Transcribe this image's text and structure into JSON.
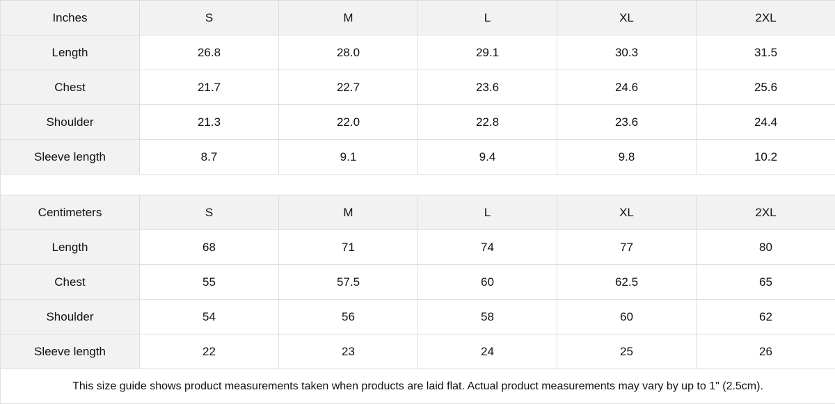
{
  "tables": [
    {
      "unit_label": "Inches",
      "sizes": [
        "S",
        "M",
        "L",
        "XL",
        "2XL"
      ],
      "rows": [
        {
          "label": "Length",
          "values": [
            "26.8",
            "28.0",
            "29.1",
            "30.3",
            "31.5"
          ]
        },
        {
          "label": "Chest",
          "values": [
            "21.7",
            "22.7",
            "23.6",
            "24.6",
            "25.6"
          ]
        },
        {
          "label": "Shoulder",
          "values": [
            "21.3",
            "22.0",
            "22.8",
            "23.6",
            "24.4"
          ]
        },
        {
          "label": "Sleeve length",
          "values": [
            "8.7",
            "9.1",
            "9.4",
            "9.8",
            "10.2"
          ]
        }
      ]
    },
    {
      "unit_label": "Centimeters",
      "sizes": [
        "S",
        "M",
        "L",
        "XL",
        "2XL"
      ],
      "rows": [
        {
          "label": "Length",
          "values": [
            "68",
            "71",
            "74",
            "77",
            "80"
          ]
        },
        {
          "label": "Chest",
          "values": [
            "55",
            "57.5",
            "60",
            "62.5",
            "65"
          ]
        },
        {
          "label": "Shoulder",
          "values": [
            "54",
            "56",
            "58",
            "60",
            "62"
          ]
        },
        {
          "label": "Sleeve length",
          "values": [
            "22",
            "23",
            "24",
            "25",
            "26"
          ]
        }
      ]
    }
  ],
  "footnote": "This size guide shows product measurements taken when products are laid flat.  Actual product measurements may vary by up to 1\" (2.5cm).",
  "colors": {
    "header_bg": "#f2f2f2",
    "border": "#dedede"
  }
}
